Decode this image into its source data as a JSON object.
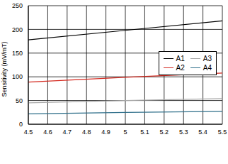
{
  "chart_data": {
    "type": "line",
    "y_label": "Sensitivity (mV/mT)",
    "x": [
      4.5,
      5.0,
      5.5
    ],
    "series": [
      {
        "name": "A1",
        "color": "#000000",
        "values": [
          178,
          198,
          218
        ]
      },
      {
        "name": "A2",
        "color": "#d42a20",
        "values": [
          89,
          99,
          108
        ]
      },
      {
        "name": "A3",
        "color": "#a8a8a8",
        "values": [
          45,
          50,
          54
        ]
      },
      {
        "name": "A4",
        "color": "#2f6f8a",
        "values": [
          22,
          25,
          27
        ]
      }
    ],
    "xlim": [
      4.5,
      5.5
    ],
    "xticks": [
      4.5,
      4.6,
      4.7,
      4.8,
      4.9,
      5,
      5.1,
      5.2,
      5.3,
      5.4,
      5.5
    ],
    "ylim": [
      0,
      250
    ],
    "yticks": [
      0,
      50,
      100,
      150,
      200,
      250
    ],
    "grid": true,
    "legend": "right"
  }
}
